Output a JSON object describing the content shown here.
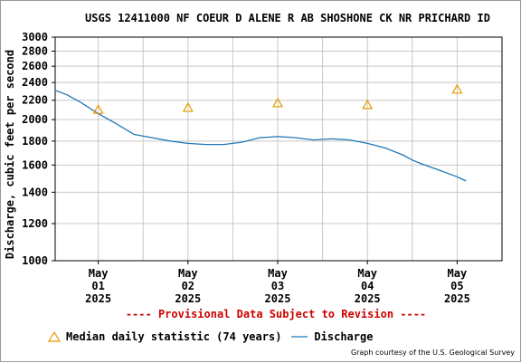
{
  "chart_data": {
    "type": "line",
    "title": "USGS 12411000 NF COEUR D ALENE R AB SHOSHONE CK NR PRICHARD ID",
    "ylabel": "Discharge, cubic feet per second",
    "xlabel": "",
    "yscale": "log",
    "ylim": [
      1000,
      3000
    ],
    "yticks": [
      1000,
      1200,
      1400,
      1600,
      1800,
      2000,
      2200,
      2400,
      2600,
      2800,
      3000
    ],
    "xlim": [
      -0.48,
      4.5
    ],
    "xticks": [
      {
        "value": 0,
        "label": [
          "May",
          "01",
          "2025"
        ]
      },
      {
        "value": 1,
        "label": [
          "May",
          "02",
          "2025"
        ]
      },
      {
        "value": 2,
        "label": [
          "May",
          "03",
          "2025"
        ]
      },
      {
        "value": 3,
        "label": [
          "May",
          "04",
          "2025"
        ]
      },
      {
        "value": 4,
        "label": [
          "May",
          "05",
          "2025"
        ]
      }
    ],
    "grid": true,
    "series": [
      {
        "name": "Discharge",
        "kind": "line",
        "color": "#1f77b4",
        "x": [
          -0.48,
          -0.35,
          -0.2,
          0,
          0.2,
          0.4,
          0.6,
          0.8,
          1.0,
          1.2,
          1.4,
          1.6,
          1.8,
          2.0,
          2.2,
          2.4,
          2.6,
          2.8,
          3.0,
          3.2,
          3.4,
          3.5,
          3.6,
          3.8,
          4.0,
          4.1
        ],
        "y": [
          2310,
          2260,
          2180,
          2060,
          1960,
          1860,
          1830,
          1800,
          1780,
          1770,
          1770,
          1790,
          1830,
          1840,
          1830,
          1810,
          1820,
          1810,
          1780,
          1740,
          1680,
          1640,
          1610,
          1560,
          1510,
          1480
        ]
      },
      {
        "name": "Median daily statistic (74 years)",
        "kind": "marker",
        "marker": "triangle",
        "color": "#e69b00",
        "x": [
          0,
          1,
          2,
          3,
          4
        ],
        "y": [
          2100,
          2120,
          2170,
          2150,
          2320
        ]
      }
    ],
    "annotation": "---- Provisional Data Subject to Revision ----",
    "annotation_color": "#cc0000",
    "credit": "Graph courtesy of the U.S. Geological Survey",
    "legend_position": "bottom"
  },
  "legend": {
    "median_label": "Median daily statistic (74 years)",
    "discharge_label": "Discharge"
  },
  "credit": "Graph courtesy of the U.S. Geological Survey"
}
